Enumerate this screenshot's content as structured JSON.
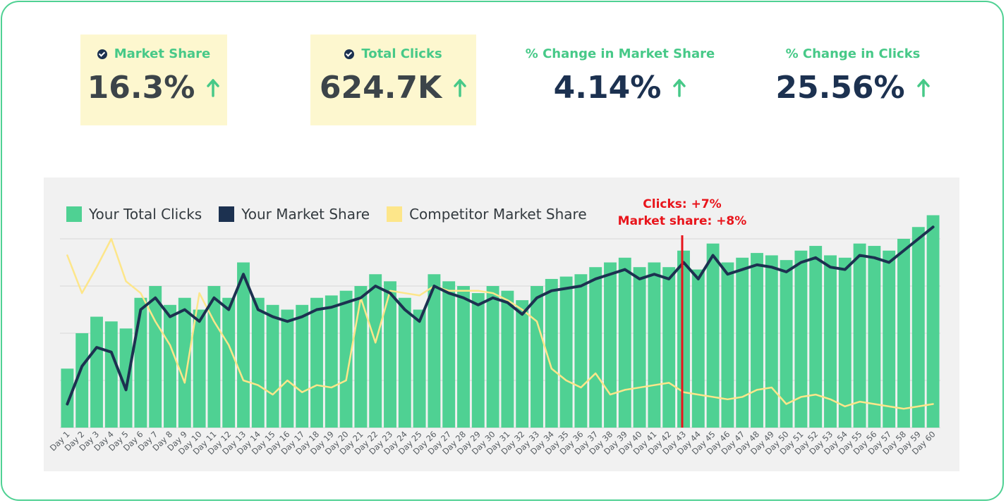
{
  "kpis": [
    {
      "label": "Market Share",
      "value": "16.3%",
      "trend": "up",
      "highlighted": true,
      "checked": true
    },
    {
      "label": "Total Clicks",
      "value": "624.7K",
      "trend": "up",
      "highlighted": true,
      "checked": true
    },
    {
      "label": "% Change in Market Share",
      "value": "4.14%",
      "trend": "up",
      "highlighted": false,
      "checked": false
    },
    {
      "label": "% Change in Clicks",
      "value": "25.56%",
      "trend": "up",
      "highlighted": false,
      "checked": false
    }
  ],
  "colors": {
    "accent_green": "#4fd193",
    "label_green": "#47c988",
    "navy": "#1c3150",
    "yellow": "#fde68a",
    "highlight_bg": "#fdf7cf",
    "annotation_red": "#e8141b",
    "panel_bg": "#f1f1f1"
  },
  "chart_data": {
    "type": "bar",
    "categories": [
      "Day 1",
      "Day 2",
      "Day 3",
      "Day 4",
      "Day 5",
      "Day 6",
      "Day 7",
      "Day 8",
      "Day 9",
      "Day 10",
      "Day 11",
      "Day 12",
      "Day 13",
      "Day 14",
      "Day 15",
      "Day 16",
      "Day 17",
      "Day 18",
      "Day 19",
      "Day 20",
      "Day 21",
      "Day 22",
      "Day 23",
      "Day 24",
      "Day 25",
      "Day 26",
      "Day 27",
      "Day 28",
      "Day 29",
      "Day 30",
      "Day 31",
      "Day 32",
      "Day 33",
      "Day 34",
      "Day 35",
      "Day 36",
      "Day 37",
      "Day 38",
      "Day 39",
      "Day 40",
      "Day 41",
      "Day 42",
      "Day 43",
      "Day 44",
      "Day 45",
      "Day 46",
      "Day 47",
      "Day 48",
      "Day 49",
      "Day 50",
      "Day 51",
      "Day 52",
      "Day 53",
      "Day 54",
      "Day 55",
      "Day 56",
      "Day 57",
      "Day 58",
      "Day 59",
      "Day 60"
    ],
    "series": [
      {
        "name": "Your Total Clicks",
        "type": "bar",
        "values": [
          25,
          40,
          47,
          45,
          42,
          55,
          60,
          52,
          55,
          50,
          60,
          55,
          70,
          55,
          52,
          50,
          52,
          55,
          56,
          58,
          60,
          65,
          62,
          55,
          50,
          65,
          62,
          60,
          57,
          60,
          58,
          54,
          60,
          63,
          64,
          65,
          68,
          70,
          72,
          68,
          70,
          68,
          75,
          67,
          78,
          70,
          72,
          74,
          73,
          71,
          75,
          77,
          73,
          72,
          78,
          77,
          75,
          80,
          85,
          90
        ]
      },
      {
        "name": "Your Market Share",
        "type": "line",
        "values": [
          10,
          26,
          34,
          32,
          16,
          50,
          55,
          47,
          50,
          45,
          55,
          50,
          65,
          50,
          47,
          45,
          47,
          50,
          51,
          53,
          55,
          60,
          57,
          50,
          45,
          60,
          57,
          55,
          52,
          55,
          53,
          48,
          55,
          58,
          59,
          60,
          63,
          65,
          67,
          63,
          65,
          63,
          70,
          63,
          73,
          65,
          67,
          69,
          68,
          66,
          70,
          72,
          68,
          67,
          73,
          72,
          70,
          75,
          80,
          85
        ]
      },
      {
        "name": "Competitor Market Share",
        "type": "line",
        "values": [
          73,
          57,
          68,
          80,
          62,
          57,
          45,
          35,
          19,
          57,
          45,
          35,
          20,
          18,
          14,
          20,
          15,
          18,
          17,
          20,
          55,
          36,
          58,
          57,
          56,
          60,
          58,
          58,
          58,
          57,
          54,
          50,
          45,
          25,
          20,
          17,
          23,
          14,
          16,
          17,
          18,
          19,
          15,
          14,
          13,
          12,
          13,
          16,
          17,
          10,
          13,
          14,
          12,
          9,
          11,
          10,
          9,
          8,
          9,
          10
        ]
      }
    ],
    "annotation": {
      "category": "Day 43",
      "lines": [
        "Clicks: +7%",
        "Market share: +8%"
      ]
    },
    "ylim": [
      0,
      100
    ],
    "gridlines": true,
    "legend": "top-left"
  }
}
